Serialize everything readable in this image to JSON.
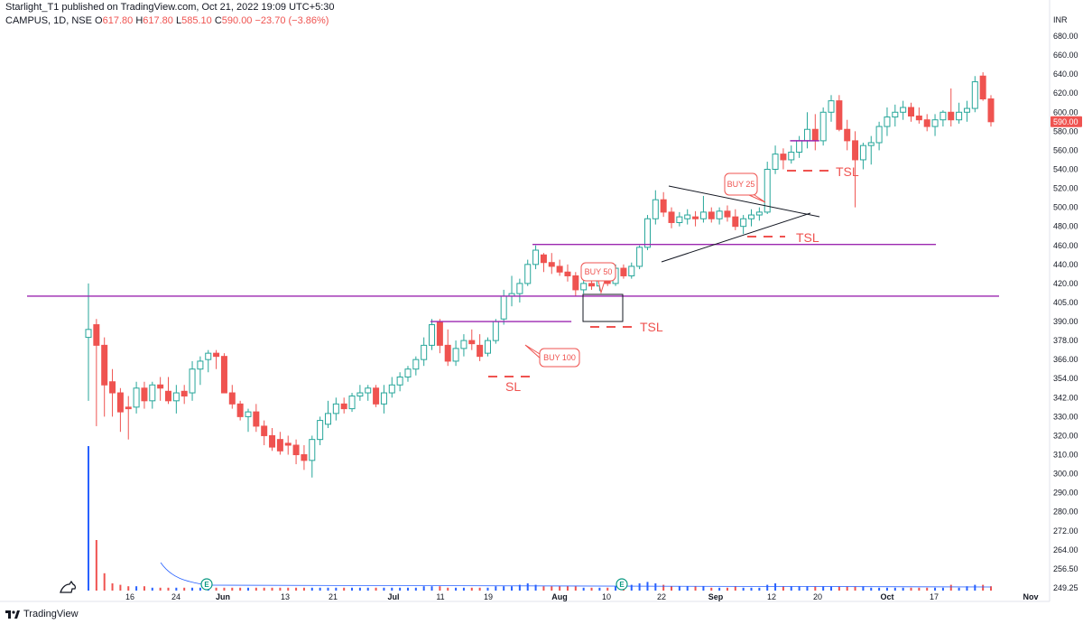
{
  "header": {
    "published": "Starlight_T1 published on TradingView.com, Oct 21, 2022 19:09 UTC+5:30",
    "symbol": "CAMPUS, 1D, NSE",
    "ohlc": {
      "o_label": "O",
      "o": "617.80",
      "h_label": "H",
      "h": "617.80",
      "l_label": "L",
      "l": "585.10",
      "c_label": "C",
      "c": "590.00",
      "change": "−23.70 (−3.86%)"
    }
  },
  "colors": {
    "up": "#26a69a",
    "down": "#ef5350",
    "magenta": "#9c27b0",
    "vol_up": "#2962ff",
    "vol_down": "#ef5350"
  },
  "chart_data": {
    "type": "candlestick",
    "currency": "INR",
    "y_ticks": [
      "680.00",
      "660.00",
      "640.00",
      "620.00",
      "600.00",
      "580.00",
      "560.00",
      "540.00",
      "520.00",
      "500.00",
      "480.00",
      "460.00",
      "440.00",
      "420.00",
      "405.00",
      "390.00",
      "378.00",
      "366.00",
      "354.00",
      "342.00",
      "330.00",
      "320.00",
      "310.00",
      "300.00",
      "290.00",
      "280.00",
      "272.00",
      "264.00",
      "256.50",
      "249.25"
    ],
    "y_tick_values": [
      680,
      660,
      640,
      620,
      600,
      580,
      560,
      540,
      520,
      500,
      480,
      460,
      440,
      420,
      405,
      390,
      378,
      366,
      354,
      342,
      330,
      320,
      310,
      300,
      290,
      280,
      272,
      264,
      256.5,
      249.25
    ],
    "scale": "log",
    "x_ticks": [
      "16",
      "24",
      "Jun",
      "13",
      "21",
      "Jul",
      "11",
      "19",
      "Aug",
      "10",
      "22",
      "Sep",
      "12",
      "20",
      "Oct",
      "17",
      "Nov"
    ],
    "last_price_label": "590.00",
    "ohlc": [
      [
        380,
        420,
        340,
        385
      ],
      [
        388,
        392,
        325,
        375
      ],
      [
        375,
        380,
        330,
        350
      ],
      [
        352,
        360,
        330,
        345
      ],
      [
        345,
        348,
        322,
        333
      ],
      [
        336,
        343,
        318,
        335
      ],
      [
        336,
        352,
        332,
        348
      ],
      [
        348,
        352,
        335,
        340
      ],
      [
        340,
        352,
        335,
        350
      ],
      [
        350,
        355,
        340,
        348
      ],
      [
        346,
        355,
        338,
        340
      ],
      [
        340,
        350,
        332,
        345
      ],
      [
        346,
        350,
        338,
        343
      ],
      [
        345,
        365,
        340,
        360
      ],
      [
        360,
        368,
        350,
        365
      ],
      [
        366,
        372,
        358,
        370
      ],
      [
        370,
        372,
        360,
        368
      ],
      [
        368,
        370,
        348,
        345
      ],
      [
        345,
        350,
        335,
        338
      ],
      [
        338,
        340,
        328,
        330
      ],
      [
        330,
        335,
        322,
        333
      ],
      [
        333,
        338,
        322,
        325
      ],
      [
        325,
        328,
        315,
        320
      ],
      [
        320,
        324,
        312,
        314
      ],
      [
        318,
        322,
        310,
        312
      ],
      [
        316,
        320,
        310,
        315
      ],
      [
        315,
        318,
        305,
        310
      ],
      [
        310,
        315,
        302,
        307
      ],
      [
        307,
        320,
        298,
        318
      ],
      [
        318,
        330,
        315,
        328
      ],
      [
        326,
        340,
        324,
        332
      ],
      [
        332,
        342,
        328,
        338
      ],
      [
        338,
        342,
        332,
        335
      ],
      [
        335,
        345,
        333,
        343
      ],
      [
        343,
        350,
        340,
        345
      ],
      [
        345,
        350,
        340,
        348
      ],
      [
        348,
        350,
        336,
        338
      ],
      [
        338,
        350,
        332,
        345
      ],
      [
        345,
        355,
        342,
        350
      ],
      [
        350,
        358,
        346,
        355
      ],
      [
        355,
        362,
        352,
        360
      ],
      [
        360,
        368,
        356,
        366
      ],
      [
        366,
        380,
        362,
        375
      ],
      [
        375,
        392,
        372,
        388
      ],
      [
        390,
        392,
        370,
        375
      ],
      [
        375,
        385,
        362,
        365
      ],
      [
        365,
        378,
        362,
        373
      ],
      [
        373,
        382,
        368,
        378
      ],
      [
        378,
        385,
        372,
        376
      ],
      [
        375,
        382,
        365,
        368
      ],
      [
        370,
        380,
        368,
        378
      ],
      [
        378,
        392,
        376,
        390
      ],
      [
        392,
        415,
        388,
        410
      ],
      [
        410,
        428,
        402,
        412
      ],
      [
        412,
        425,
        405,
        420
      ],
      [
        420,
        445,
        418,
        440
      ],
      [
        440,
        460,
        435,
        455
      ],
      [
        450,
        452,
        432,
        442
      ],
      [
        442,
        452,
        430,
        438
      ],
      [
        438,
        445,
        428,
        432
      ],
      [
        432,
        440,
        422,
        428
      ],
      [
        428,
        432,
        410,
        415
      ],
      [
        415,
        425,
        412,
        420
      ],
      [
        420,
        428,
        415,
        418
      ],
      [
        418,
        428,
        414,
        425
      ],
      [
        425,
        432,
        418,
        420
      ],
      [
        420,
        440,
        418,
        436
      ],
      [
        436,
        440,
        425,
        428
      ],
      [
        428,
        442,
        425,
        438
      ],
      [
        438,
        460,
        435,
        458
      ],
      [
        458,
        492,
        455,
        488
      ],
      [
        488,
        518,
        482,
        508
      ],
      [
        508,
        516,
        490,
        495
      ],
      [
        495,
        500,
        478,
        484
      ],
      [
        484,
        495,
        480,
        490
      ],
      [
        488,
        498,
        482,
        492
      ],
      [
        490,
        496,
        480,
        488
      ],
      [
        488,
        512,
        484,
        495
      ],
      [
        495,
        500,
        484,
        488
      ],
      [
        488,
        500,
        482,
        496
      ],
      [
        496,
        502,
        485,
        490
      ],
      [
        490,
        498,
        476,
        480
      ],
      [
        480,
        492,
        472,
        488
      ],
      [
        488,
        498,
        480,
        492
      ],
      [
        492,
        500,
        486,
        495
      ],
      [
        495,
        548,
        493,
        540
      ],
      [
        540,
        565,
        535,
        556
      ],
      [
        556,
        562,
        540,
        550
      ],
      [
        550,
        565,
        546,
        558
      ],
      [
        558,
        575,
        552,
        570
      ],
      [
        570,
        600,
        562,
        582
      ],
      [
        582,
        598,
        560,
        570
      ],
      [
        570,
        605,
        565,
        600
      ],
      [
        600,
        618,
        590,
        612
      ],
      [
        612,
        618,
        580,
        582
      ],
      [
        582,
        592,
        560,
        570
      ],
      [
        570,
        580,
        500,
        550
      ],
      [
        550,
        568,
        540,
        565
      ],
      [
        565,
        575,
        545,
        568
      ],
      [
        568,
        590,
        560,
        585
      ],
      [
        585,
        605,
        575,
        595
      ],
      [
        595,
        608,
        585,
        600
      ],
      [
        600,
        612,
        592,
        605
      ],
      [
        605,
        610,
        590,
        596
      ],
      [
        596,
        605,
        588,
        592
      ],
      [
        592,
        598,
        580,
        585
      ],
      [
        585,
        598,
        575,
        592
      ],
      [
        592,
        602,
        585,
        600
      ],
      [
        600,
        625,
        585,
        592
      ],
      [
        592,
        610,
        588,
        600
      ],
      [
        600,
        612,
        590,
        604
      ],
      [
        604,
        638,
        600,
        632
      ],
      [
        638,
        642,
        612,
        614
      ],
      [
        614,
        618,
        585,
        590
      ]
    ],
    "volume_relative": [
      1.0,
      0.35,
      0.12,
      0.05,
      0.04,
      0.03,
      0.03,
      0.03,
      0.02,
      0.02,
      0.02,
      0.02,
      0.02,
      0.02,
      0.02,
      0.02,
      0.02,
      0.02,
      0.02,
      0.02,
      0.02,
      0.02,
      0.02,
      0.02,
      0.02,
      0.02,
      0.02,
      0.02,
      0.02,
      0.02,
      0.02,
      0.02,
      0.02,
      0.02,
      0.02,
      0.02,
      0.02,
      0.02,
      0.02,
      0.02,
      0.02,
      0.02,
      0.03,
      0.03,
      0.03,
      0.02,
      0.02,
      0.02,
      0.02,
      0.02,
      0.02,
      0.03,
      0.03,
      0.03,
      0.04,
      0.05,
      0.04,
      0.03,
      0.03,
      0.03,
      0.03,
      0.03,
      0.02,
      0.02,
      0.02,
      0.02,
      0.03,
      0.03,
      0.04,
      0.05,
      0.06,
      0.05,
      0.04,
      0.03,
      0.03,
      0.03,
      0.03,
      0.03,
      0.02,
      0.02,
      0.02,
      0.03,
      0.02,
      0.02,
      0.02,
      0.04,
      0.05,
      0.03,
      0.03,
      0.03,
      0.03,
      0.03,
      0.03,
      0.03,
      0.03,
      0.03,
      0.03,
      0.03,
      0.02,
      0.02,
      0.02,
      0.02,
      0.02,
      0.02,
      0.02,
      0.02,
      0.02,
      0.02,
      0.04,
      0.02,
      0.03,
      0.04,
      0.04,
      0.03
    ],
    "annotations": [
      {
        "type": "hline",
        "price": 410,
        "x_from": 0.0,
        "x_to": 1.0,
        "color": "magenta"
      },
      {
        "type": "hline",
        "price": 461,
        "x_from": 0.52,
        "x_to": 0.935,
        "color": "magenta"
      },
      {
        "type": "hline",
        "price": 390,
        "x_from": 0.415,
        "x_to": 0.56,
        "color": "magenta"
      },
      {
        "type": "hline",
        "price": 570,
        "x_from": 0.785,
        "x_to": 0.815,
        "color": "magenta"
      },
      {
        "type": "label",
        "text": "BUY 100",
        "price": 375,
        "at": 0.56
      },
      {
        "type": "label",
        "text": "BUY 50",
        "price": 455,
        "at": 0.6
      },
      {
        "type": "label",
        "text": "BUY 25",
        "price": 520,
        "at": 0.75
      },
      {
        "type": "text",
        "text": "SL",
        "price": 357,
        "at": 0.5
      },
      {
        "type": "text",
        "text": "TSL",
        "price": 402,
        "at": 0.62
      },
      {
        "type": "text",
        "text": "TSL",
        "price": 472,
        "at": 0.8
      },
      {
        "type": "text",
        "text": "TSL",
        "price": 537,
        "at": 0.84
      }
    ]
  },
  "footer": {
    "brand": "TradingView"
  },
  "icons": {
    "event_markers": [
      "earnings-icon",
      "earnings-icon"
    ]
  }
}
